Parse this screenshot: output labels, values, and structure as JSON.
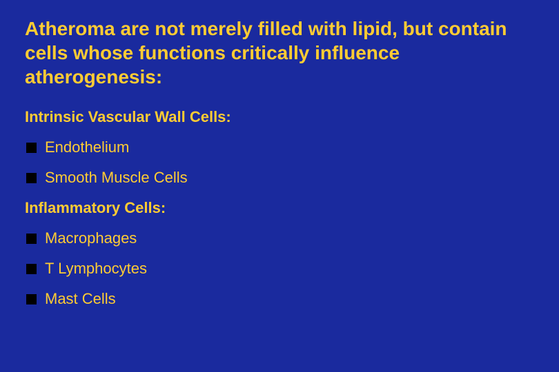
{
  "slide": {
    "background_color": "#1a2a9e",
    "text_color": "#ffcc33",
    "bullet_color": "#000000",
    "title_fontsize": 28,
    "heading_fontsize": 22,
    "body_fontsize": 22,
    "font_family": "Verdana",
    "title": "Atheroma are not merely filled with lipid, but contain cells whose functions critically influence atherogenesis:",
    "sections": [
      {
        "heading": "Intrinsic Vascular Wall Cells:",
        "items": [
          "Endothelium",
          "Smooth Muscle Cells"
        ]
      },
      {
        "heading": "Inflammatory Cells:",
        "items": [
          "Macrophages",
          "T Lymphocytes",
          "Mast Cells"
        ]
      }
    ]
  }
}
